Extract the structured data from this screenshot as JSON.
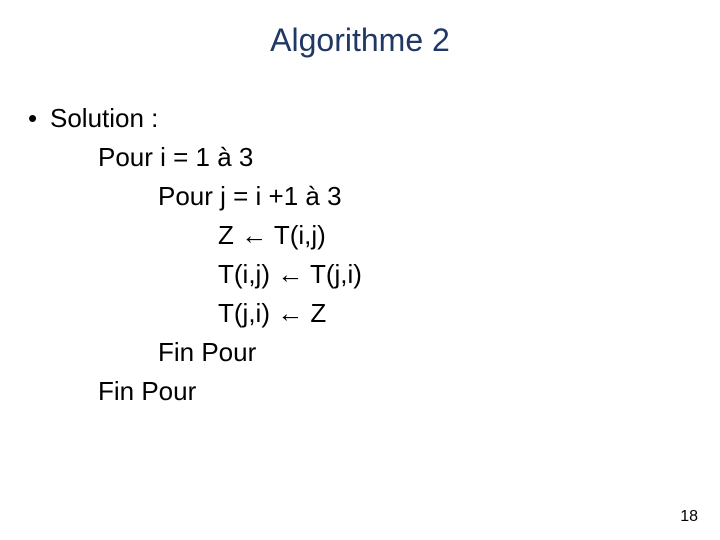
{
  "title": {
    "text": "Algorithme 2",
    "color": "#1f3864",
    "fontsize": 32
  },
  "bullet_label": "Solution :",
  "lines": {
    "l1": "Pour i = 1 à 3",
    "l2": "Pour j = i +1 à 3",
    "l3": "Z ← T(i,j)",
    "l4": "T(i,j) ← T(j,i)",
    "l5": "T(j,i) ← Z",
    "l6": "Fin Pour",
    "l7": "Fin Pour"
  },
  "page_number": "18",
  "colors": {
    "title": "#1f3864",
    "body": "#000000",
    "pagenum": "#000000",
    "background": "#ffffff"
  },
  "typography": {
    "title_fontsize": 32,
    "body_fontsize": 26,
    "pagenum_fontsize": 16,
    "font_family": "Verdana"
  }
}
